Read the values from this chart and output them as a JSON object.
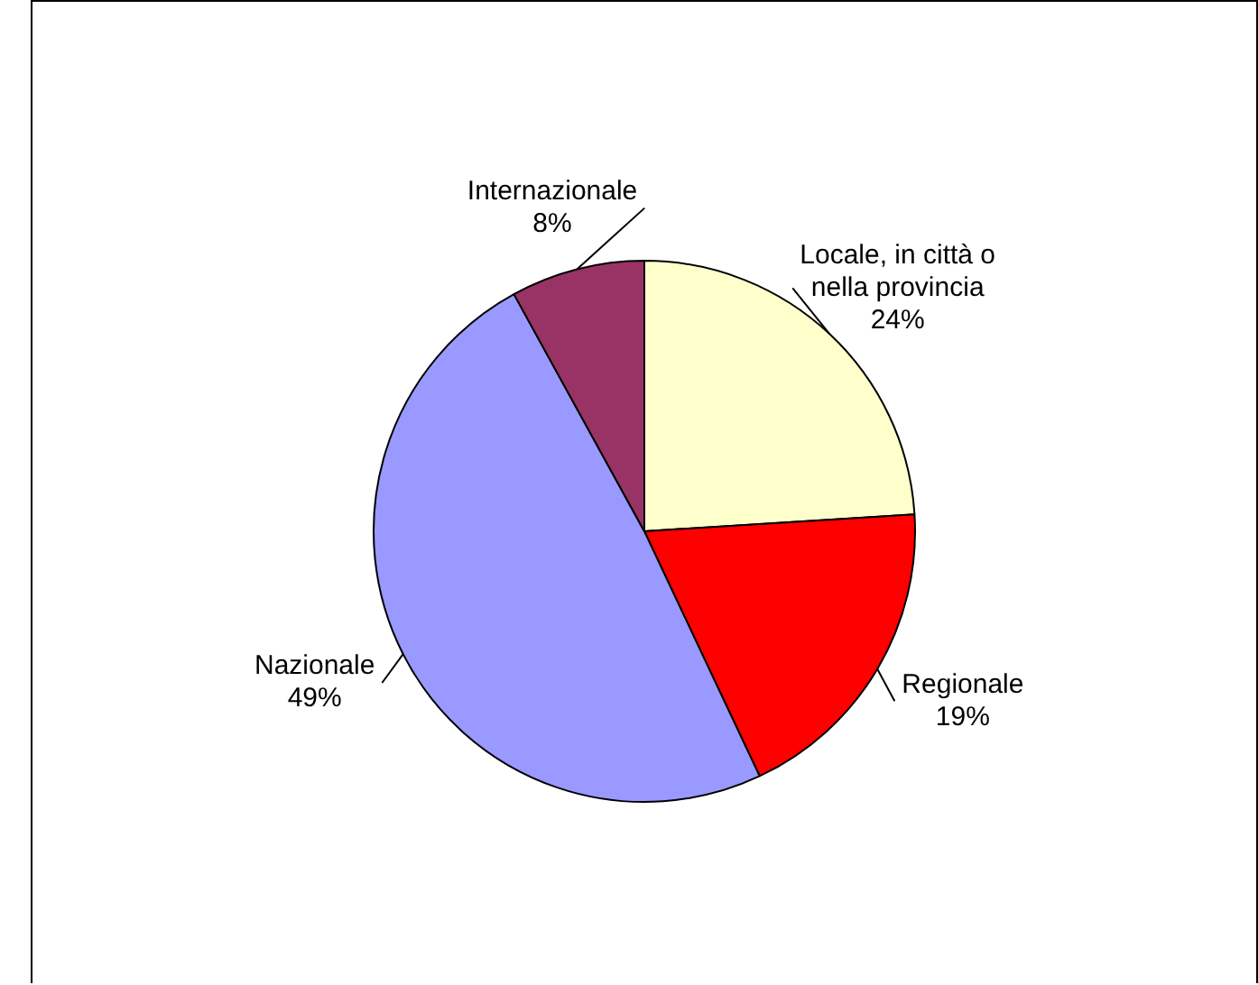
{
  "chart_data": {
    "type": "pie",
    "categories": [
      "Locale, in città o nella provincia",
      "Regionale",
      "Nazionale",
      "Internazionale"
    ],
    "values": [
      24,
      19,
      49,
      8
    ],
    "colors": [
      "#ffffcc",
      "#ff0000",
      "#9999ff",
      "#993366"
    ],
    "value_labels": [
      "24%",
      "19%",
      "49%",
      "8%"
    ],
    "legend": false
  }
}
